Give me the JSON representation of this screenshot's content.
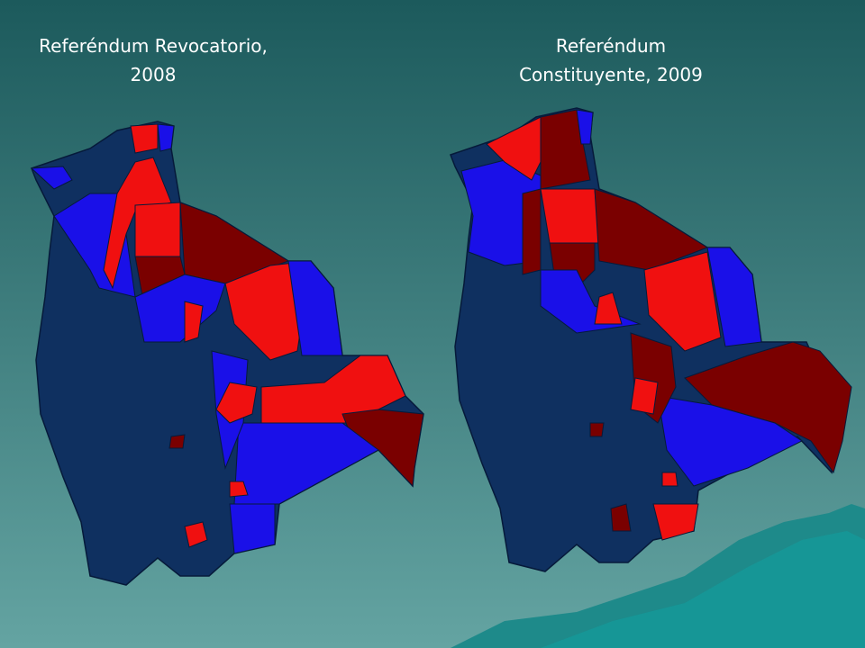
{
  "maps": [
    {
      "title": [
        "Referéndum Revocatorio,",
        "2008"
      ]
    },
    {
      "title": [
        "Referéndum",
        "Constituyente, 2009"
      ]
    }
  ]
}
